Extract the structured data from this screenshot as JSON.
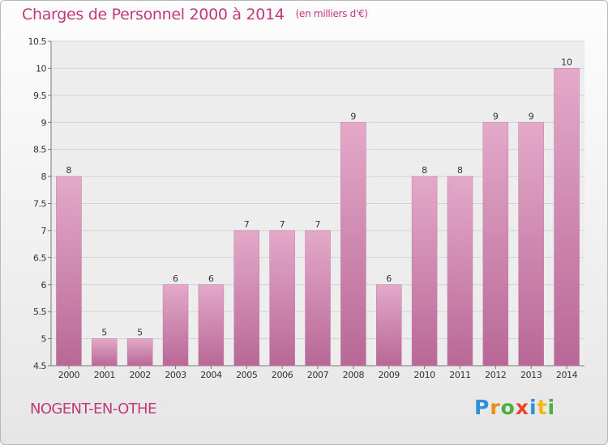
{
  "chart_data": {
    "type": "bar",
    "title": "Charges de Personnel 2000 à 2014",
    "unit_note": "(en milliers d'€)",
    "categories": [
      "2000",
      "2001",
      "2002",
      "2003",
      "2004",
      "2005",
      "2006",
      "2007",
      "2008",
      "2009",
      "2010",
      "2011",
      "2012",
      "2013",
      "2014"
    ],
    "values": [
      8,
      5,
      5,
      6,
      6,
      7,
      7,
      7,
      9,
      6,
      8,
      8,
      9,
      9,
      10
    ],
    "ylim": [
      4.5,
      10.5
    ],
    "yticks": [
      "4.5",
      "5",
      "5.5",
      "6",
      "6.5",
      "7",
      "7.5",
      "8",
      "8.5",
      "9",
      "9.5",
      "10",
      "10.5"
    ],
    "grid": true,
    "bar_color": "#d889b2",
    "title_color": "#c2387a"
  },
  "location": "NOGENT-EN-OTHE",
  "brand": {
    "letters": [
      "P",
      "r",
      "o",
      "x",
      "i",
      "t",
      "i"
    ],
    "colors": [
      "#2f8fd8",
      "#f08a1c",
      "#4caf3a",
      "#e8472b",
      "#2f8fd8",
      "#f6b614",
      "#4caf3a"
    ]
  }
}
